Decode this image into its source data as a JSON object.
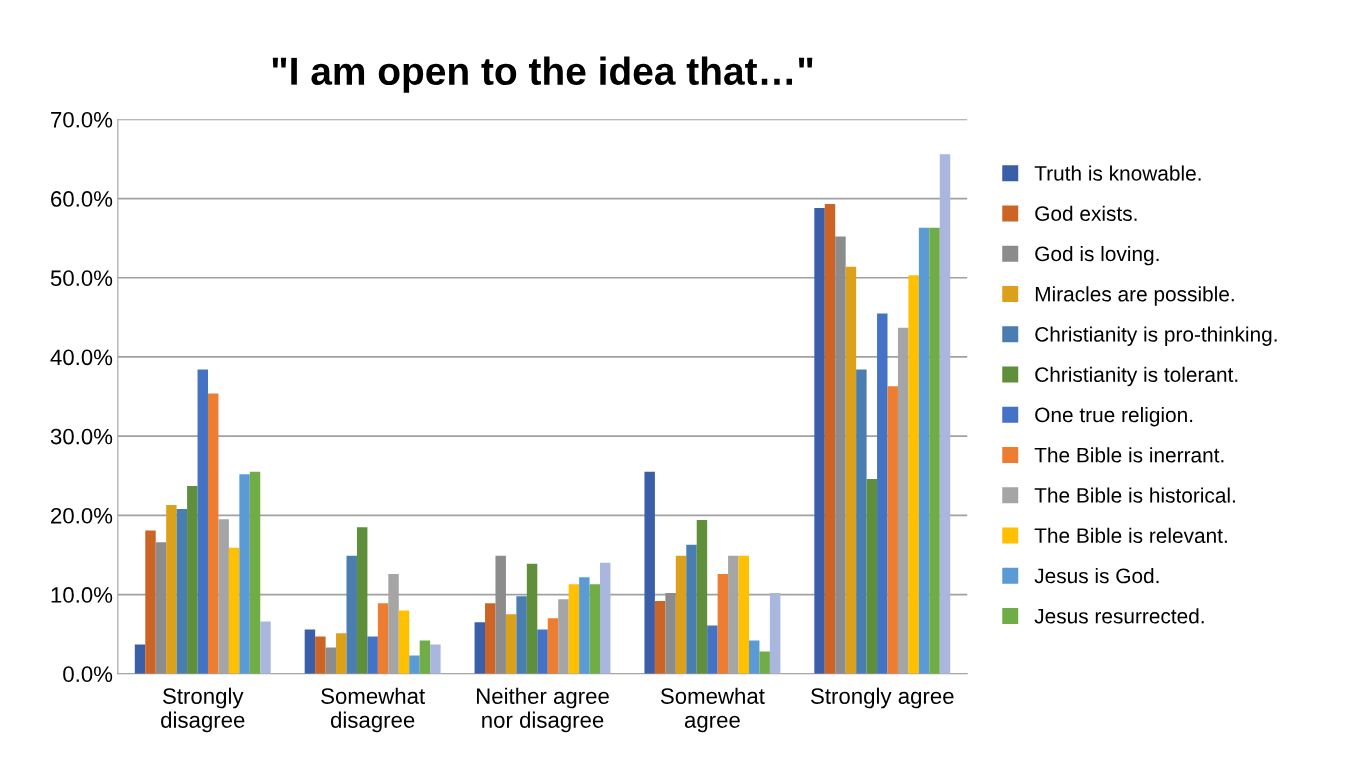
{
  "chart_data": {
    "type": "bar",
    "title": "\"I am open to the idea that…\"",
    "categories": [
      "Strongly\ndisagree",
      "Somewhat\ndisagree",
      "Neither agree\nnor disagree",
      "Somewhat\nagree",
      "Strongly agree"
    ],
    "series": [
      {
        "name": "Truth is knowable.",
        "color": "#3a5ea8",
        "values": [
          3.7,
          5.6,
          6.5,
          25.5,
          58.8
        ]
      },
      {
        "name": "God exists.",
        "color": "#cc6426",
        "values": [
          18.1,
          4.7,
          8.9,
          9.2,
          59.3
        ]
      },
      {
        "name": "God is loving.",
        "color": "#8c8c8c",
        "values": [
          16.6,
          3.3,
          14.9,
          10.2,
          55.2
        ]
      },
      {
        "name": "Miracles are possible.",
        "color": "#dca11a",
        "values": [
          21.3,
          5.1,
          7.5,
          14.9,
          51.4
        ]
      },
      {
        "name": "Christianity is pro-thinking.",
        "color": "#4a7eb0",
        "values": [
          20.8,
          14.9,
          9.8,
          16.3,
          38.4
        ]
      },
      {
        "name": "Christianity is tolerant.",
        "color": "#5f8f3a",
        "values": [
          23.7,
          18.5,
          13.9,
          19.4,
          24.6
        ]
      },
      {
        "name": "One true religion.",
        "color": "#4472c4",
        "values": [
          38.4,
          4.7,
          5.6,
          6.1,
          45.5
        ]
      },
      {
        "name": "The Bible is inerrant.",
        "color": "#ed7d31",
        "values": [
          35.4,
          8.9,
          7.0,
          12.6,
          36.3
        ]
      },
      {
        "name": "The Bible is historical.",
        "color": "#a5a5a5",
        "values": [
          19.5,
          12.6,
          9.4,
          14.9,
          43.7
        ]
      },
      {
        "name": "The Bible is relevant.",
        "color": "#ffc000",
        "values": [
          15.9,
          8.0,
          11.3,
          14.9,
          50.3
        ]
      },
      {
        "name": "Jesus is God.",
        "color": "#5b9bd5",
        "values": [
          25.2,
          2.3,
          12.2,
          4.2,
          56.3
        ]
      },
      {
        "name": "Jesus resurrected.",
        "color": "#70ad47",
        "values": [
          25.5,
          4.2,
          11.3,
          2.8,
          56.3
        ]
      },
      {
        "color": "#a9b6dd",
        "values": [
          6.6,
          3.7,
          14.0,
          10.2,
          65.6
        ]
      }
    ],
    "ylim": [
      0,
      70
    ],
    "yticks": [
      {
        "value": 0,
        "label": "0.0%"
      },
      {
        "value": 10,
        "label": "10.0%"
      },
      {
        "value": 20,
        "label": "20.0%"
      },
      {
        "value": 30,
        "label": "30.0%"
      },
      {
        "value": 40,
        "label": "40.0%"
      },
      {
        "value": 50,
        "label": "50.0%"
      },
      {
        "value": 60,
        "label": "60.0%"
      },
      {
        "value": 70,
        "label": "70.0%"
      }
    ],
    "grid": "y",
    "legend": "right"
  }
}
